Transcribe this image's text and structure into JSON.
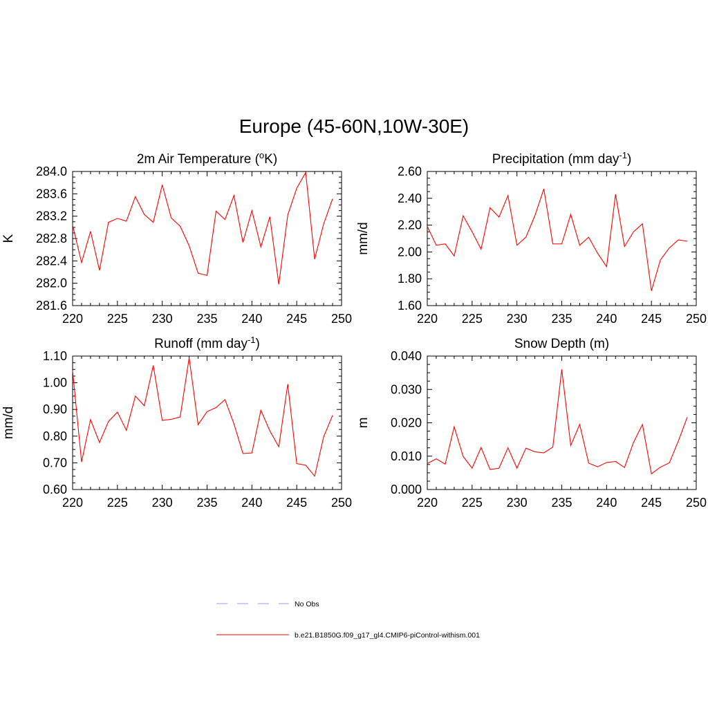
{
  "figure": {
    "title": "Europe (45-60N,10W-30E)"
  },
  "legend": {
    "entries": [
      {
        "label": "No Obs",
        "color": "#9999ff",
        "dash": "dashed"
      },
      {
        "label": "b.e21.B1850G.f09_g17_gl4.CMIP6-piControl-withism.001",
        "color": "#ff0000",
        "dash": "solid"
      }
    ]
  },
  "chart_data": [
    {
      "type": "line",
      "title": "2m Air Temperature (°K)",
      "title_parts": [
        "2m Air Temperature (",
        "o",
        "K)"
      ],
      "ylabel": "K",
      "xlim": [
        220,
        250
      ],
      "ylim": [
        281.6,
        284.0
      ],
      "xticks": [
        "220",
        "225",
        "230",
        "235",
        "240",
        "245",
        "250"
      ],
      "yticks": [
        "281.6",
        "282.0",
        "282.4",
        "282.8",
        "283.2",
        "283.6",
        "284.0"
      ],
      "series": [
        {
          "color": "#ff0000",
          "x": [
            220,
            221,
            222,
            223,
            224,
            225,
            226,
            227,
            228,
            229,
            230,
            231,
            232,
            233,
            234,
            235,
            236,
            237,
            238,
            239,
            240,
            241,
            242,
            243,
            244,
            245,
            246,
            247,
            248,
            249
          ],
          "values": [
            283.04,
            282.37,
            282.93,
            282.23,
            283.09,
            283.16,
            283.11,
            283.55,
            283.23,
            283.09,
            283.76,
            283.17,
            283.02,
            282.67,
            282.18,
            282.14,
            283.29,
            283.14,
            283.57,
            282.73,
            283.3,
            282.65,
            283.19,
            281.98,
            283.22,
            283.7,
            283.98,
            282.43,
            283.06,
            283.51
          ]
        }
      ]
    },
    {
      "type": "line",
      "title": "Precipitation (mm day-1)",
      "title_parts": [
        "Precipitation (mm day",
        "-1",
        ")"
      ],
      "ylabel": "mm/d",
      "xlim": [
        220,
        250
      ],
      "ylim": [
        1.6,
        2.6
      ],
      "xticks": [
        "220",
        "225",
        "230",
        "235",
        "240",
        "245",
        "250"
      ],
      "yticks": [
        "1.60",
        "1.80",
        "2.00",
        "2.20",
        "2.40",
        "2.60"
      ],
      "series": [
        {
          "color": "#ff0000",
          "x": [
            220,
            221,
            222,
            223,
            224,
            225,
            226,
            227,
            228,
            229,
            230,
            231,
            232,
            233,
            234,
            235,
            236,
            237,
            238,
            239,
            240,
            241,
            242,
            243,
            244,
            245,
            246,
            247,
            248,
            249
          ],
          "values": [
            2.19,
            2.05,
            2.06,
            1.97,
            2.27,
            2.15,
            2.02,
            2.33,
            2.26,
            2.42,
            2.05,
            2.11,
            2.27,
            2.47,
            2.06,
            2.06,
            2.28,
            2.05,
            2.11,
            1.99,
            1.89,
            2.43,
            2.04,
            2.15,
            2.21,
            1.71,
            1.94,
            2.03,
            2.09,
            2.08
          ]
        }
      ]
    },
    {
      "type": "line",
      "title": "Runoff (mm day-1)",
      "title_parts": [
        "Runoff (mm day",
        "-1",
        ")"
      ],
      "ylabel": "mm/d",
      "xlim": [
        220,
        250
      ],
      "ylim": [
        0.6,
        1.1
      ],
      "xticks": [
        "220",
        "225",
        "230",
        "235",
        "240",
        "245",
        "250"
      ],
      "yticks": [
        "0.60",
        "0.70",
        "0.80",
        "0.90",
        "1.00",
        "1.10"
      ],
      "series": [
        {
          "color": "#ff0000",
          "x": [
            220,
            221,
            222,
            223,
            224,
            225,
            226,
            227,
            228,
            229,
            230,
            231,
            232,
            233,
            234,
            235,
            236,
            237,
            238,
            239,
            240,
            241,
            242,
            243,
            244,
            245,
            246,
            247,
            248,
            249
          ],
          "values": [
            1.045,
            0.703,
            0.862,
            0.776,
            0.855,
            0.89,
            0.822,
            0.95,
            0.914,
            1.065,
            0.859,
            0.863,
            0.872,
            1.094,
            0.843,
            0.892,
            0.907,
            0.937,
            0.846,
            0.735,
            0.737,
            0.897,
            0.82,
            0.76,
            0.995,
            0.697,
            0.691,
            0.65,
            0.797,
            0.878
          ]
        }
      ]
    },
    {
      "type": "line",
      "title": "Snow Depth (m)",
      "title_parts": [
        "Snow Depth (m)",
        "",
        ""
      ],
      "ylabel": "m",
      "xlim": [
        220,
        250
      ],
      "ylim": [
        0.0,
        0.04
      ],
      "xticks": [
        "220",
        "225",
        "230",
        "235",
        "240",
        "245",
        "250"
      ],
      "yticks": [
        "0.000",
        "0.010",
        "0.020",
        "0.030",
        "0.040"
      ],
      "series": [
        {
          "color": "#ff0000",
          "x": [
            220,
            221,
            222,
            223,
            224,
            225,
            226,
            227,
            228,
            229,
            230,
            231,
            232,
            233,
            234,
            235,
            236,
            237,
            238,
            239,
            240,
            241,
            242,
            243,
            244,
            245,
            246,
            247,
            248,
            249
          ],
          "values": [
            0.0078,
            0.0092,
            0.0076,
            0.0188,
            0.0099,
            0.0064,
            0.0126,
            0.006,
            0.0064,
            0.0125,
            0.0064,
            0.0124,
            0.0113,
            0.011,
            0.0127,
            0.036,
            0.0132,
            0.0195,
            0.0079,
            0.0068,
            0.0081,
            0.0084,
            0.0066,
            0.0141,
            0.0195,
            0.0047,
            0.0067,
            0.008,
            0.0145,
            0.0217
          ]
        }
      ]
    }
  ]
}
